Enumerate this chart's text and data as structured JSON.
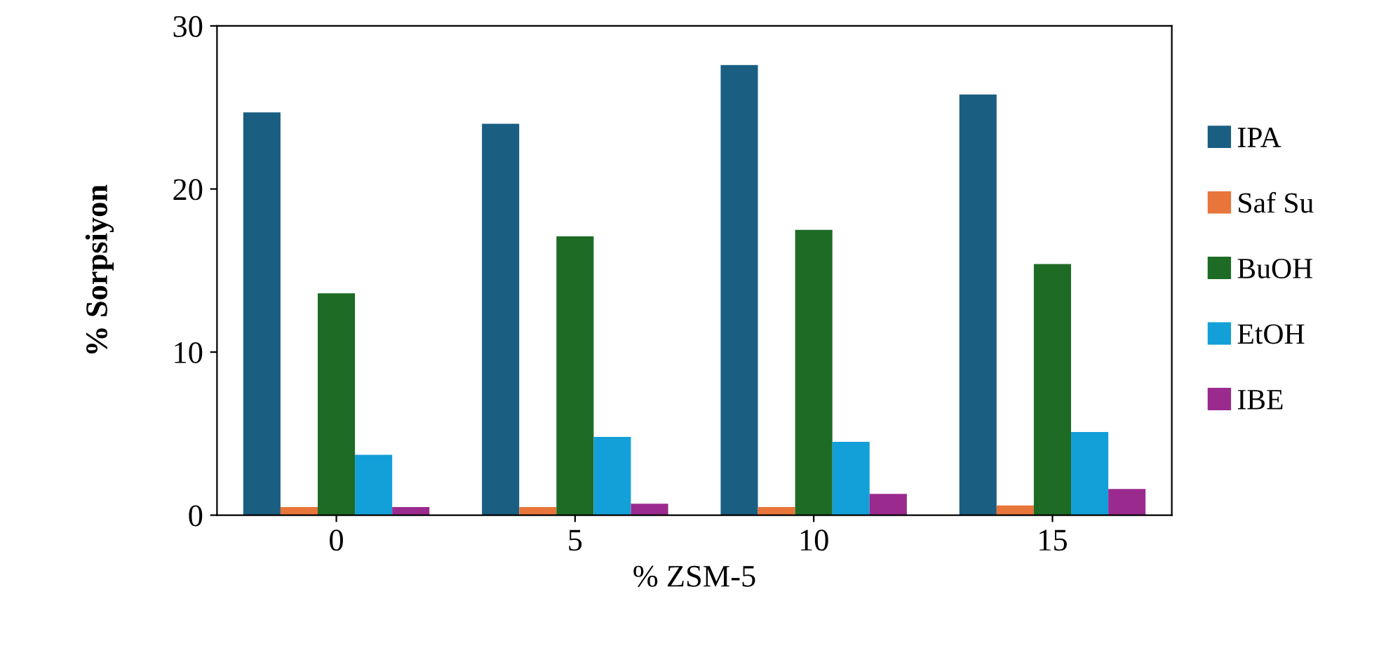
{
  "chart_data": {
    "type": "bar",
    "xlabel": "% ZSM-5",
    "ylabel": "% Sorpsiyon",
    "categories": [
      "0",
      "5",
      "10",
      "15"
    ],
    "series": [
      {
        "name": "IPA",
        "color": "#1a5e82",
        "values": [
          24.7,
          24.0,
          27.6,
          25.8
        ]
      },
      {
        "name": "Saf Su",
        "color": "#e8753a",
        "values": [
          0.5,
          0.5,
          0.5,
          0.6
        ]
      },
      {
        "name": "BuOH",
        "color": "#1e6b25",
        "values": [
          13.6,
          17.1,
          17.5,
          15.4
        ]
      },
      {
        "name": "EtOH",
        "color": "#139fd8",
        "values": [
          3.7,
          4.8,
          4.5,
          5.1
        ]
      },
      {
        "name": "IBE",
        "color": "#9b2a8e",
        "values": [
          0.5,
          0.7,
          1.3,
          1.6
        ]
      }
    ],
    "ylim": [
      0,
      30
    ],
    "yticks": [
      0,
      10,
      20,
      30
    ],
    "grid": false,
    "legend": "right"
  }
}
